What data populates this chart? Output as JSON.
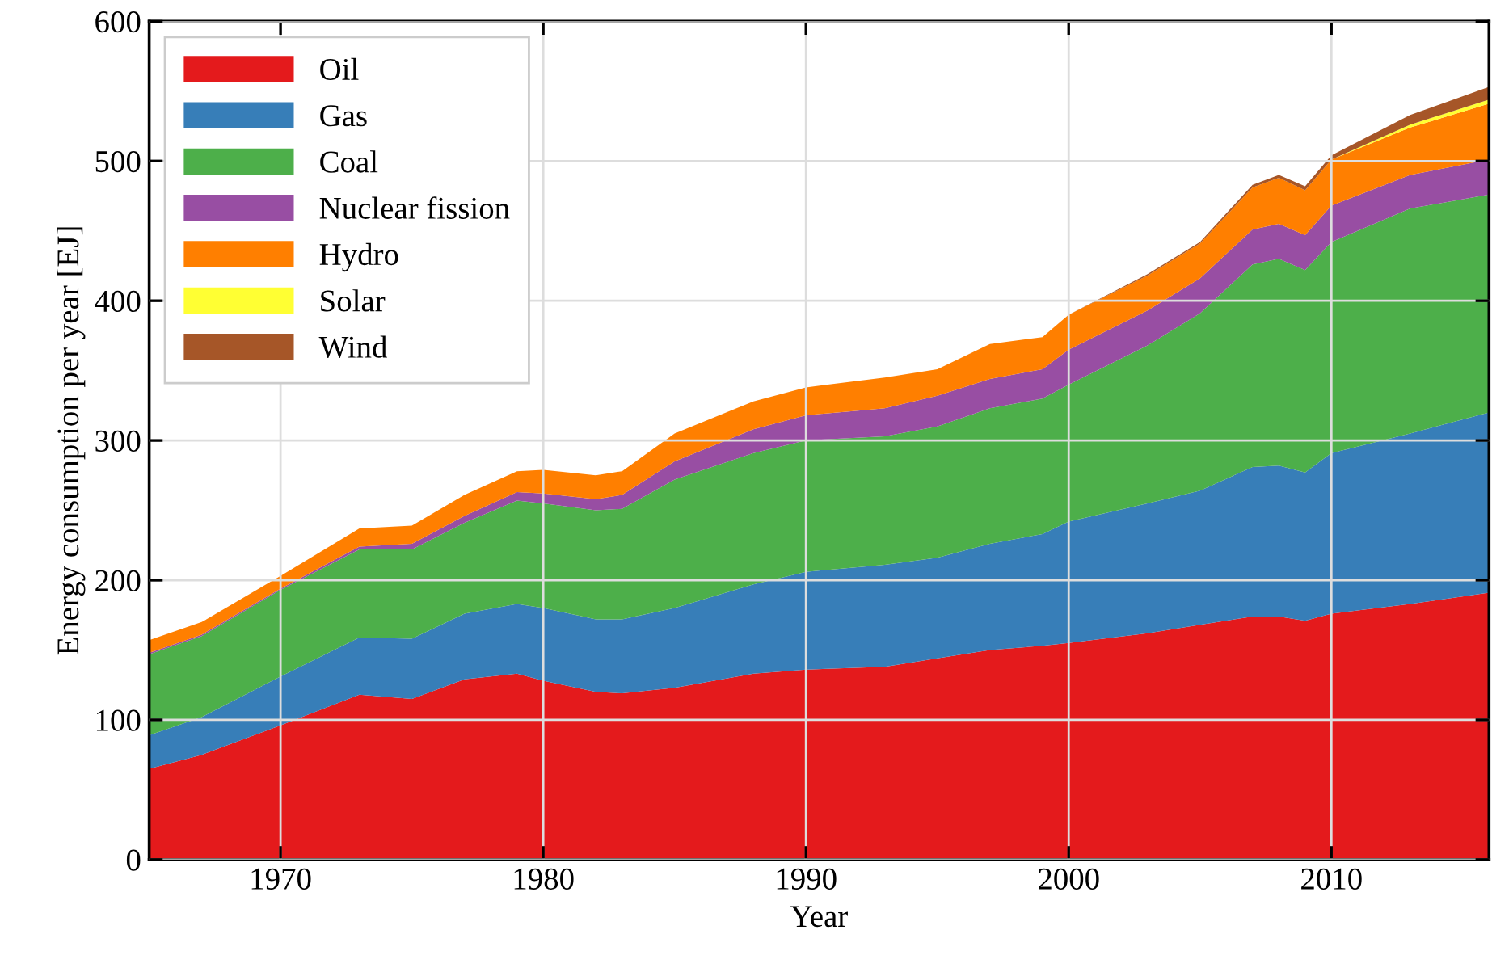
{
  "chart_data": {
    "type": "area",
    "stacked": true,
    "xlabel": "Year",
    "ylabel": "Energy consumption per year [EJ]",
    "x": [
      1965,
      1967,
      1970,
      1973,
      1975,
      1977,
      1979,
      1980,
      1982,
      1983,
      1985,
      1988,
      1990,
      1993,
      1995,
      1997,
      1999,
      2000,
      2003,
      2005,
      2007,
      2008,
      2009,
      2010,
      2013,
      2016
    ],
    "series": [
      {
        "name": "Oil",
        "color": "#e41a1c",
        "values": [
          65,
          75,
          96,
          118,
          115,
          129,
          133,
          128,
          120,
          119,
          123,
          133,
          136,
          138,
          144,
          150,
          153,
          155,
          162,
          168,
          174,
          174,
          171,
          176,
          183,
          191
        ]
      },
      {
        "name": "Gas",
        "color": "#377eb8",
        "values": [
          24,
          27,
          35,
          41,
          43,
          47,
          50,
          52,
          52,
          53,
          57,
          64,
          70,
          73,
          72,
          76,
          80,
          87,
          93,
          96,
          107,
          108,
          106,
          115,
          122,
          129
        ]
      },
      {
        "name": "Coal",
        "color": "#4daf4a",
        "values": [
          58,
          58,
          62,
          63,
          64,
          65,
          74,
          75,
          78,
          79,
          92,
          94,
          94,
          92,
          94,
          97,
          97,
          98,
          113,
          127,
          145,
          148,
          145,
          151,
          161,
          156
        ]
      },
      {
        "name": "Nuclear fission",
        "color": "#984ea3",
        "values": [
          1,
          1,
          1,
          2,
          4,
          5,
          6,
          7,
          8,
          10,
          13,
          17,
          18,
          20,
          22,
          21,
          21,
          25,
          25,
          25,
          25,
          25,
          25,
          26,
          24,
          25
        ]
      },
      {
        "name": "Hydro",
        "color": "#ff7f00",
        "values": [
          9,
          9,
          9,
          13,
          13,
          15,
          15,
          17,
          17,
          17,
          20,
          20,
          20,
          22,
          19,
          25,
          23,
          25,
          25,
          25,
          30,
          33,
          32,
          33,
          34,
          40
        ]
      },
      {
        "name": "Solar",
        "color": "#ffff33",
        "values": [
          0,
          0,
          0,
          0,
          0,
          0,
          0,
          0,
          0,
          0,
          0,
          0,
          0,
          0,
          0,
          0,
          0,
          0,
          0,
          0,
          0,
          0,
          0,
          0,
          2,
          3
        ]
      },
      {
        "name": "Wind",
        "color": "#a65628",
        "values": [
          0,
          0,
          0,
          0,
          0,
          0,
          0,
          0,
          0,
          0,
          0,
          0,
          0,
          0,
          0,
          0,
          0,
          0,
          1,
          1,
          2,
          2,
          3,
          3,
          7,
          9
        ]
      }
    ],
    "xlim": [
      1965,
      2016
    ],
    "xticks": [
      1970,
      1980,
      1990,
      2000,
      2010
    ],
    "ylim": [
      0,
      600
    ],
    "yticks": [
      0,
      100,
      200,
      300,
      400,
      500,
      600
    ],
    "grid": true,
    "legend": "top left"
  }
}
